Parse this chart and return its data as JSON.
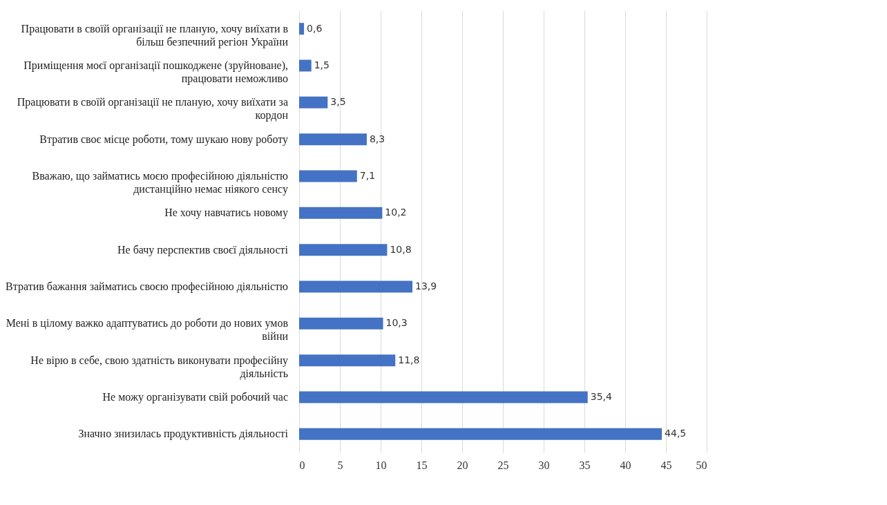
{
  "chart_data": {
    "type": "bar",
    "orientation": "horizontal",
    "color": "#4472c4",
    "categories": [
      "Працювати в своїй організації не планую, хочу виїхати в більш безпечний регіон України",
      "Приміщення моєї організації пошкоджене (зруйноване), працювати неможливо",
      "Працювати в своїй організації не планую, хочу виїхати за кордон",
      "Втратив своє місце роботи, тому шукаю нову роботу",
      "Вважаю, що займатись моєю професійною діяльністю дистанційно немає ніякого сенсу",
      "Не хочу навчатись новому",
      "Не бачу перспектив своєї діяльності",
      "Втратив бажання займатись своєю професійною діяльністю",
      "Мені в цілому важко адаптуватись до роботи до нових умов війни",
      "Не вірю в себе, свою здатність виконувати професійну діяльність",
      "Не можу організувати свій робочий час",
      "Значно знизилась продуктивність діяльності"
    ],
    "values": [
      0.6,
      1.5,
      3.5,
      8.3,
      7.1,
      10.2,
      10.8,
      13.9,
      10.3,
      11.8,
      35.4,
      44.5
    ],
    "value_labels": [
      "0,6",
      "1,5",
      "3,5",
      "8,3",
      "7,1",
      "10,2",
      "10,8",
      "13,9",
      "10,3",
      "11,8",
      "35,4",
      "44,5"
    ],
    "xlim": [
      0,
      50
    ],
    "xticks": [
      0,
      5,
      10,
      15,
      20,
      25,
      30,
      35,
      40,
      45,
      50
    ],
    "grid": "x"
  }
}
